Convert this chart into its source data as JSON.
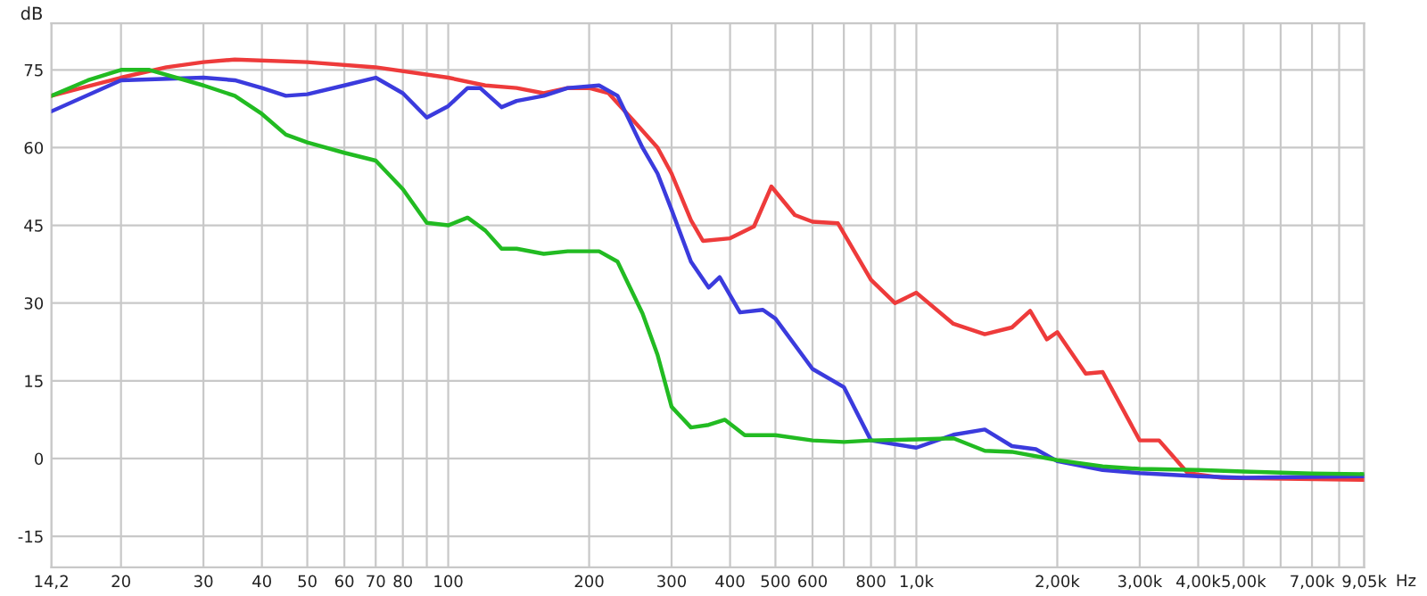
{
  "chart_data": {
    "type": "line",
    "ylabel": "dB",
    "log": "x",
    "grid": true,
    "legend": false,
    "xlim": [
      14.2,
      9050
    ],
    "ylim": [
      -21,
      84
    ],
    "xticks": [
      {
        "value": 14.2,
        "label": "14,2"
      },
      20,
      30,
      40,
      50,
      60,
      70,
      80,
      {
        "value": 90,
        "label": null
      },
      100,
      200,
      300,
      400,
      500,
      600,
      {
        "value": 700,
        "label": null
      },
      800,
      {
        "value": 900,
        "label": null
      },
      {
        "value": 1000,
        "label": "1,0k"
      },
      {
        "value": 2000,
        "label": "2,00k"
      },
      {
        "value": 3000,
        "label": "3,00k"
      },
      {
        "value": 4000,
        "label": "4,00k"
      },
      {
        "value": 5000,
        "label": "5,00k"
      },
      {
        "value": 6000,
        "label": null
      },
      {
        "value": 7000,
        "label": "7,00k"
      },
      {
        "value": 8000,
        "label": null
      },
      {
        "value": 9050,
        "label": "9,05k"
      }
    ],
    "xlabel": "Hz",
    "yticks": [
      -15,
      0,
      15,
      30,
      45,
      60,
      75
    ],
    "series": [
      {
        "color": "#ee3b3b",
        "x": [
          14.2,
          20,
          25,
          30,
          35,
          50,
          70,
          100,
          120,
          140,
          160,
          180,
          200,
          220,
          250,
          280,
          300,
          330,
          350,
          400,
          450,
          490,
          550,
          600,
          680,
          800,
          900,
          1000,
          1200,
          1400,
          1600,
          1750,
          1900,
          2000,
          2300,
          2500,
          3000,
          3300,
          3800,
          4500,
          9050
        ],
        "values": [
          70,
          73.5,
          75.5,
          76.5,
          77,
          76.5,
          75.5,
          73.5,
          72,
          71.5,
          70.5,
          71.5,
          71.5,
          70.5,
          65,
          60,
          55,
          46,
          42,
          42.5,
          44.8,
          52.5,
          47,
          45.7,
          45.4,
          34.5,
          30,
          32,
          26,
          24,
          25.3,
          28.5,
          23,
          24.4,
          16.4,
          16.7,
          3.5,
          3.5,
          -2.8,
          -3.7,
          -4.1
        ]
      },
      {
        "color": "#3b3bdd",
        "x": [
          14.2,
          20,
          30,
          35,
          40,
          45,
          50,
          60,
          70,
          80,
          90,
          100,
          110,
          117,
          130,
          140,
          160,
          180,
          210,
          230,
          260,
          280,
          300,
          330,
          360,
          380,
          420,
          470,
          500,
          600,
          700,
          800,
          1000,
          1200,
          1400,
          1600,
          1800,
          2000,
          2500,
          3000,
          4000,
          5000,
          9050
        ],
        "values": [
          67,
          73,
          73.5,
          73,
          71.5,
          70,
          70.3,
          72,
          73.5,
          70.5,
          65.8,
          68,
          71.5,
          71.5,
          67.8,
          69,
          70,
          71.5,
          72,
          70,
          60,
          55,
          48,
          38,
          33,
          35,
          28.2,
          28.7,
          27,
          17.3,
          13.8,
          3.5,
          2.1,
          4.6,
          5.6,
          2.4,
          1.8,
          -0.5,
          -2.2,
          -2.8,
          -3.4,
          -3.7,
          -3.4
        ]
      },
      {
        "color": "#22bb22",
        "x": [
          14.2,
          17,
          20,
          23,
          30,
          35,
          40,
          45,
          50,
          60,
          70,
          80,
          90,
          100,
          110,
          120,
          130,
          140,
          160,
          180,
          210,
          230,
          260,
          280,
          300,
          330,
          360,
          390,
          430,
          500,
          600,
          700,
          800,
          1000,
          1200,
          1400,
          1600,
          2000,
          2500,
          3000,
          4000,
          5000,
          7000,
          9050
        ],
        "values": [
          70,
          73,
          75,
          75,
          72,
          70,
          66.5,
          62.5,
          61,
          59,
          57.5,
          52,
          45.5,
          45,
          46.5,
          44,
          40.5,
          40.5,
          39.5,
          40,
          40,
          38,
          28,
          20,
          10,
          6,
          6.5,
          7.5,
          4.5,
          4.5,
          3.5,
          3.2,
          3.5,
          3.7,
          3.9,
          1.5,
          1.3,
          -0.3,
          -1.5,
          -2,
          -2.2,
          -2.5,
          -2.9,
          -3
        ]
      }
    ]
  }
}
